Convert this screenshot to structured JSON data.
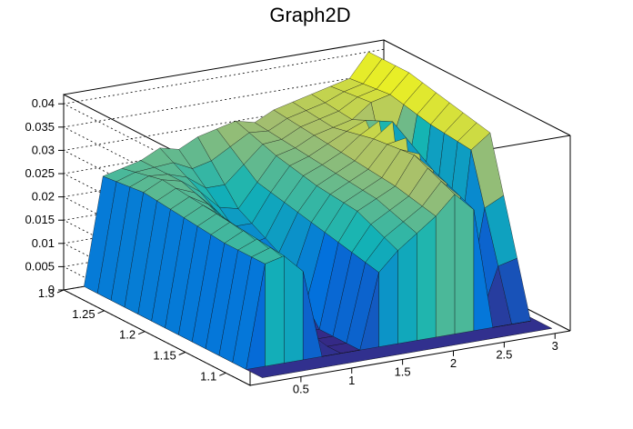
{
  "chart_data": {
    "type": "surface3d",
    "title": "Graph2D",
    "x_axis": {
      "range": [
        0.0,
        3.15
      ],
      "ticks": [
        "0.5",
        "1",
        "1.5",
        "2",
        "2.5",
        "3"
      ]
    },
    "y_axis": {
      "range": [
        1.07,
        1.3
      ],
      "ticks": [
        "1.1",
        "1.15",
        "1.2",
        "1.25",
        "1.3"
      ]
    },
    "z_axis": {
      "range": [
        0,
        0.042
      ],
      "ticks": [
        "0",
        "0.005",
        "0.01",
        "0.015",
        "0.02",
        "0.025",
        "0.03",
        "0.035",
        "0.04"
      ]
    },
    "grid": "dashed on back walls",
    "palette": "kBird (dark blue to yellow)",
    "surface_rows": [
      {
        "y": 1.3,
        "z": [
          0.0,
          0.023,
          0.024,
          0.025,
          0.027,
          0.026,
          0.028,
          0.029,
          0.03,
          0.029,
          0.031,
          0.032,
          0.033,
          0.034,
          0.035,
          0.04
        ]
      },
      {
        "y": 1.25,
        "z": [
          0.0,
          0.024,
          0.026,
          0.025,
          0.022,
          0.018,
          0.017,
          0.022,
          0.027,
          0.028,
          0.03,
          0.031,
          0.032,
          0.035,
          0.036,
          0.04
        ]
      },
      {
        "y": 1.2,
        "z": [
          0.0,
          0.023,
          0.025,
          0.022,
          0.016,
          0.01,
          0.012,
          0.02,
          0.025,
          0.027,
          0.029,
          0.033,
          0.036,
          0.0,
          0.034,
          0.038
        ]
      },
      {
        "y": 1.15,
        "z": [
          0.0,
          0.022,
          0.024,
          0.02,
          0.011,
          0.0,
          0.0,
          0.018,
          0.024,
          0.026,
          0.028,
          0.034,
          0.03,
          0.0,
          0.033,
          0.036
        ]
      },
      {
        "y": 1.1,
        "z": [
          0.0,
          0.022,
          0.023,
          0.019,
          0.0,
          0.0,
          0.0,
          0.016,
          0.02,
          0.023,
          0.026,
          0.03,
          0.026,
          0.0,
          0.0,
          0.0
        ]
      }
    ]
  }
}
